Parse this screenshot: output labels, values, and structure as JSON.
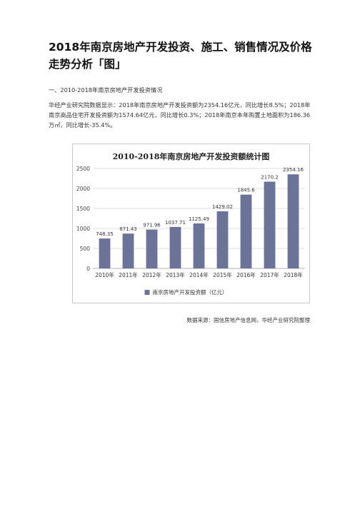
{
  "document": {
    "title": "2018年南京房地产开发投资、施工、销售情况及价格走势分析「图」",
    "section_heading": "一、2010-2018年南京房地产开发投资情况",
    "paragraph": "华经产业研究院数据显示：2018年南京房地产开发投资额为2354.16亿元，同比增长8.5%；2018年南京商品住宅开发投资额为1574.64亿元，同比增长0.3%；2018年南京本年购置土地面积为186.36万㎡，同比增长-35.4%。",
    "source": "数据来源：国信房地产信息网，华经产业研究院整理"
  },
  "chart_data": {
    "type": "bar",
    "title": "2010-2018年南京房地产开发投资额统计图",
    "categories": [
      "2010年",
      "2011年",
      "2012年",
      "2013年",
      "2014年",
      "2015年",
      "2016年",
      "2017年",
      "2018年"
    ],
    "series": [
      {
        "name": "南京房地产开发投资额（亿元）",
        "values": [
          748.35,
          871.43,
          971.96,
          1037.71,
          1125.49,
          1429.02,
          1845.6,
          2170.2,
          2354.16
        ],
        "labels": [
          "748.35",
          "871.43",
          "971.96",
          "1037.71",
          "1125.49",
          "1429.02",
          "1845.6",
          "2170.2",
          "2354.16"
        ],
        "color": "#6b7399"
      }
    ],
    "ylim": [
      0,
      2500
    ],
    "yticks": [
      "0",
      "500",
      "1000",
      "1500",
      "2000",
      "2500"
    ],
    "grid": true,
    "legend_position": "bottom"
  }
}
